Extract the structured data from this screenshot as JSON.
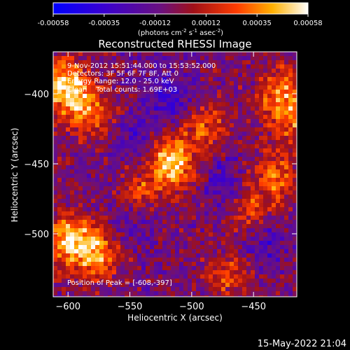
{
  "chart_data": {
    "type": "heatmap",
    "title": "Reconstructed RHESSI Image",
    "xlabel": "Heliocentric X (arcsec)",
    "ylabel": "Heliocentric Y (arcsec)",
    "xlim": [
      -612,
      -415
    ],
    "ylim": [
      -545,
      -370
    ],
    "x_ticks": [
      -600,
      -550,
      -500,
      -450
    ],
    "y_ticks": [
      -400,
      -450,
      -500
    ],
    "colorbar": {
      "ticks": [
        "-0.00058",
        "-0.00035",
        "-0.00012",
        "0.00012",
        "0.00035",
        "0.00058"
      ],
      "range": [
        -0.00058,
        0.00058
      ],
      "unit_label": "(photons cm",
      "unit_sup1": "-2",
      "unit_mid": " s",
      "unit_sup2": "-1",
      "unit_mid2": " asec",
      "unit_sup3": "-2",
      "unit_end": ")"
    },
    "annotations": {
      "time": "9-Nov-2012 15:51:44.000 to 15:53:52.000",
      "detectors": "Detectors: 3F 5F 6F 7F 8F, Att 0",
      "energy": "Energy Range: 12.0 - 25.0 keV",
      "clean": "Clean    Total counts: 1.69E+03",
      "peak": "Position of Peak = [-608,-397]"
    },
    "peak": {
      "x": -608,
      "y": -397
    },
    "hot_regions": [
      {
        "x": -604,
        "y": -393,
        "level": 1.0
      },
      {
        "x": -585,
        "y": -412,
        "level": 0.75
      },
      {
        "x": -598,
        "y": -505,
        "level": 0.95
      },
      {
        "x": -575,
        "y": -515,
        "level": 0.7
      },
      {
        "x": -520,
        "y": -443,
        "level": 0.6
      },
      {
        "x": -512,
        "y": -455,
        "level": 0.55
      },
      {
        "x": -488,
        "y": -423,
        "level": 0.55
      },
      {
        "x": -542,
        "y": -470,
        "level": 0.45
      },
      {
        "x": -428,
        "y": -398,
        "level": 0.6
      },
      {
        "x": -420,
        "y": -418,
        "level": 0.55
      },
      {
        "x": -432,
        "y": -458,
        "level": 0.55
      },
      {
        "x": -450,
        "y": -485,
        "level": 0.5
      },
      {
        "x": -470,
        "y": -530,
        "level": 0.45
      }
    ],
    "cold_regions": [
      {
        "x": -516,
        "y": -403,
        "level": -0.45
      },
      {
        "x": -542,
        "y": -432,
        "level": -0.35
      },
      {
        "x": -476,
        "y": -462,
        "level": -0.35
      },
      {
        "x": -440,
        "y": -505,
        "level": -0.4
      },
      {
        "x": -548,
        "y": -492,
        "level": -0.3
      }
    ]
  },
  "footer": {
    "datetime": "15-May-2022 21:04"
  }
}
